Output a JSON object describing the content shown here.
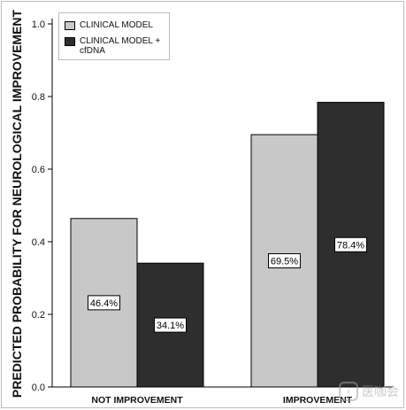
{
  "chart_data": {
    "type": "bar",
    "categories": [
      "NOT IMPROVEMENT",
      "IMPROVEMENT"
    ],
    "series": [
      {
        "name": "CLINICAL MODEL",
        "values": [
          0.464,
          0.695
        ],
        "labels": [
          "46.4%",
          "69.5%"
        ],
        "color": "#c8c8c8"
      },
      {
        "name": "CLINICAL MODEL + cfDNA",
        "values": [
          0.341,
          0.784
        ],
        "labels": [
          "34.1%",
          "78.4%"
        ],
        "color": "#2e2e2e"
      }
    ],
    "ylabel": "PREDICTED PROBABILITY FOR NEUROLOGICAL IMPROVEMENT",
    "ylim": [
      0,
      1.0
    ],
    "yticks": [
      "0.0",
      "0.2",
      "0.4",
      "0.6",
      "0.8",
      "1.0"
    ],
    "grid": false,
    "legend_position": "top-left"
  },
  "legend": {
    "item1": "CLINICAL MODEL",
    "item2": "CLINICAL MODEL + cfDNA"
  },
  "watermark": {
    "icon_name": "chat-bubble-icon",
    "text": "医咖会"
  }
}
